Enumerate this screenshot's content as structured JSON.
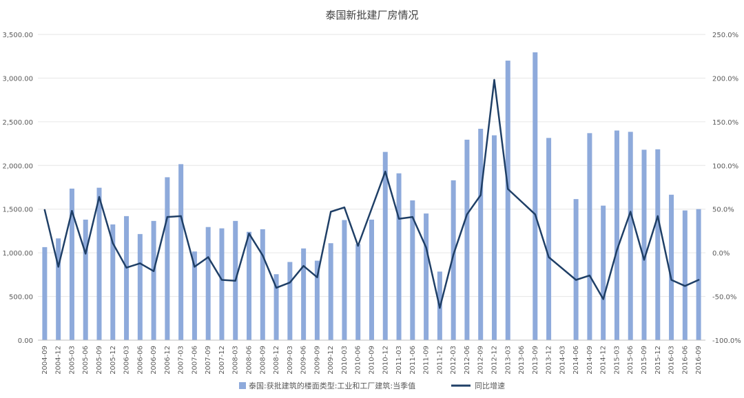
{
  "chart_data": {
    "type": "bar",
    "title": "泰国新批建厂房情况",
    "colors": {
      "bar": "#8eaadb",
      "line": "#1f3f66",
      "grid": "#e6e6e6",
      "axis": "#bfbfbf"
    },
    "categories": [
      "2004-09",
      "2004-12",
      "2005-03",
      "2005-06",
      "2005-09",
      "2005-12",
      "2006-03",
      "2006-06",
      "2006-09",
      "2006-12",
      "2007-03",
      "2007-06",
      "2007-09",
      "2007-12",
      "2008-03",
      "2008-06",
      "2008-09",
      "2008-12",
      "2009-03",
      "2009-06",
      "2009-09",
      "2009-12",
      "2010-03",
      "2010-06",
      "2010-09",
      "2010-12",
      "2011-03",
      "2011-06",
      "2011-09",
      "2011-12",
      "2012-03",
      "2012-06",
      "2012-09",
      "2012-12",
      "2013-03",
      "2013-06",
      "2013-09",
      "2013-12",
      "2014-03",
      "2014-06",
      "2014-09",
      "2014-12",
      "2015-03",
      "2015-06",
      "2015-09",
      "2015-12",
      "2016-03",
      "2016-06",
      "2016-09"
    ],
    "series": [
      {
        "name": "泰国:获批建筑的楼面类型:工业和工厂建筑:当季值",
        "kind": "bar",
        "axis": "left",
        "values": [
          1065,
          1165,
          1735,
          1380,
          1745,
          1325,
          1420,
          1215,
          1365,
          1865,
          2015,
          1015,
          1295,
          1280,
          1365,
          1240,
          1270,
          755,
          895,
          1050,
          910,
          1110,
          1375,
          1100,
          1380,
          2155,
          1910,
          1600,
          1450,
          785,
          1830,
          2295,
          2420,
          2345,
          3200,
          null,
          3295,
          2315,
          null,
          1615,
          2370,
          1540,
          2400,
          2385,
          2180,
          2185,
          1665,
          1485,
          1500
        ]
      },
      {
        "name": "同比增速",
        "kind": "line",
        "axis": "right",
        "values": [
          49,
          -16,
          48,
          -1,
          64,
          11,
          -17,
          -12,
          -21,
          41,
          42,
          -16,
          -5,
          -31,
          -32,
          22,
          -3,
          -40,
          -34,
          -15,
          -28,
          47,
          52,
          8,
          null,
          93,
          39,
          41,
          6,
          -63,
          -2,
          44,
          66,
          198,
          73,
          null,
          44,
          -5,
          null,
          -31,
          -26,
          -53,
          3,
          47,
          -8,
          42,
          -31,
          -38,
          -31
        ]
      }
    ],
    "y_left": {
      "min": 0,
      "max": 3500,
      "ticks": [
        "0.00",
        "500.00",
        "1,000.00",
        "1,500.00",
        "2,000.00",
        "2,500.00",
        "3,000.00",
        "3,500.00"
      ]
    },
    "y_right": {
      "min": -100,
      "max": 250,
      "ticks": [
        "-100.0%",
        "-50.0%",
        "0.0%",
        "50.0%",
        "100.0%",
        "150.0%",
        "200.0%",
        "250.0%"
      ]
    },
    "grid": true,
    "legend": "bottom"
  }
}
